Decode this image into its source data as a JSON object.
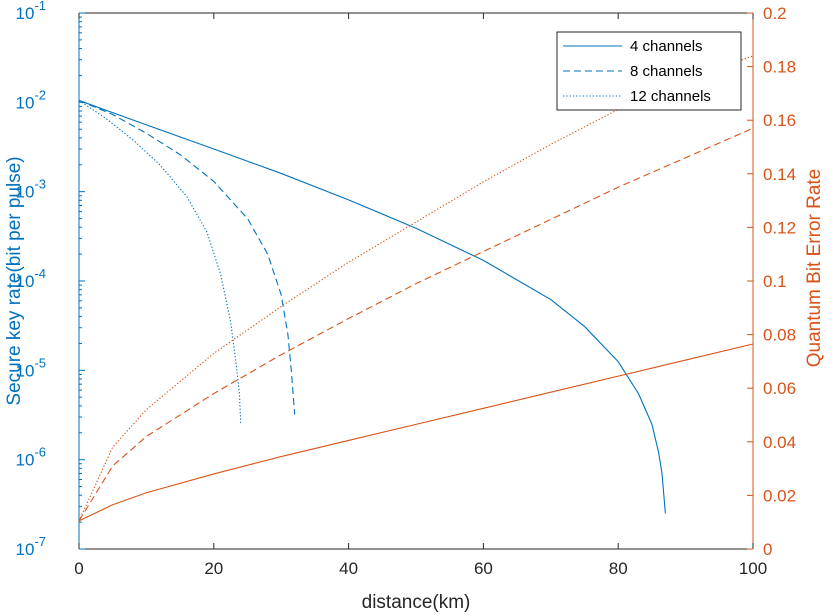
{
  "colors": {
    "left_axis": "#0072BD",
    "right_axis": "#D95319",
    "bottom_axis": "#262626",
    "background": "#ffffff"
  },
  "chart_data": {
    "type": "line",
    "title": "",
    "xlabel": "distance(km)",
    "ylabel_left": "Secure key rate(bit per pulse)",
    "ylabel_right": "Quantum Bit Error Rate",
    "xlim": [
      0,
      100
    ],
    "ylim_left": [
      1e-07,
      0.1
    ],
    "yscale_left": "log",
    "ylim_right": [
      0,
      0.2
    ],
    "yscale_right": "linear",
    "grid": false,
    "legend_position": "top-right",
    "x_ticks": [
      "0",
      "20",
      "40",
      "60",
      "80",
      "100"
    ],
    "left_ticks": [
      {
        "base": "10",
        "exp": "-7"
      },
      {
        "base": "10",
        "exp": "-6"
      },
      {
        "base": "10",
        "exp": "-5"
      },
      {
        "base": "10",
        "exp": "-4"
      },
      {
        "base": "10",
        "exp": "-3"
      },
      {
        "base": "10",
        "exp": "-2"
      },
      {
        "base": "10",
        "exp": "-1"
      }
    ],
    "right_ticks": [
      "0",
      "0.02",
      "0.04",
      "0.06",
      "0.08",
      "0.1",
      "0.12",
      "0.14",
      "0.16",
      "0.18",
      "0.2"
    ],
    "series": [
      {
        "name": "4 channels",
        "axis": "left",
        "style": "solid",
        "color": "#0072BD",
        "x": [
          0,
          10,
          20,
          30,
          40,
          50,
          60,
          70,
          75,
          80,
          83,
          85,
          86,
          86.5,
          87
        ],
        "y": [
          0.0105,
          0.0056,
          0.003,
          0.0016,
          0.00081,
          0.00039,
          0.00017,
          6.2e-05,
          3.1e-05,
          1.25e-05,
          5.5e-06,
          2.5e-06,
          1.2e-06,
          7e-07,
          2.5e-07
        ]
      },
      {
        "name": "8 channels",
        "axis": "left",
        "style": "dashed",
        "color": "#0072BD",
        "x": [
          0,
          5,
          10,
          15,
          20,
          25,
          28,
          30,
          31,
          31.5,
          32
        ],
        "y": [
          0.0105,
          0.0073,
          0.0045,
          0.0026,
          0.0013,
          0.0005,
          0.0002,
          7e-05,
          2.5e-05,
          1e-05,
          3.2e-06
        ]
      },
      {
        "name": "12 channels",
        "axis": "left",
        "style": "dotted",
        "color": "#0072BD",
        "x": [
          0,
          4,
          8,
          12,
          16,
          19,
          21,
          22.5,
          23.3,
          23.8,
          24
        ],
        "y": [
          0.0105,
          0.0066,
          0.0038,
          0.002,
          0.00088,
          0.00035,
          0.00012,
          3.5e-05,
          1.2e-05,
          5.5e-06,
          2.5e-06
        ]
      },
      {
        "name": "",
        "axis": "right",
        "style": "solid",
        "color": "#D95319",
        "x": [
          0,
          5,
          10,
          20,
          30,
          40,
          50,
          60,
          70,
          80,
          90,
          100
        ],
        "y": [
          0.0105,
          0.0165,
          0.021,
          0.028,
          0.0345,
          0.0405,
          0.0465,
          0.0525,
          0.0585,
          0.0645,
          0.0705,
          0.0765
        ]
      },
      {
        "name": "",
        "axis": "right",
        "style": "dashed",
        "color": "#D95319",
        "x": [
          0,
          5,
          10,
          20,
          30,
          40,
          50,
          60,
          70,
          80,
          90,
          100
        ],
        "y": [
          0.0105,
          0.031,
          0.042,
          0.058,
          0.0725,
          0.086,
          0.099,
          0.111,
          0.123,
          0.135,
          0.146,
          0.157
        ]
      },
      {
        "name": "",
        "axis": "right",
        "style": "dotted",
        "color": "#D95319",
        "x": [
          0,
          5,
          10,
          20,
          30,
          40,
          50,
          60,
          70,
          80,
          90,
          100
        ],
        "y": [
          0.0105,
          0.038,
          0.052,
          0.073,
          0.0905,
          0.107,
          0.122,
          0.137,
          0.151,
          0.164,
          0.175,
          0.184
        ]
      }
    ]
  }
}
